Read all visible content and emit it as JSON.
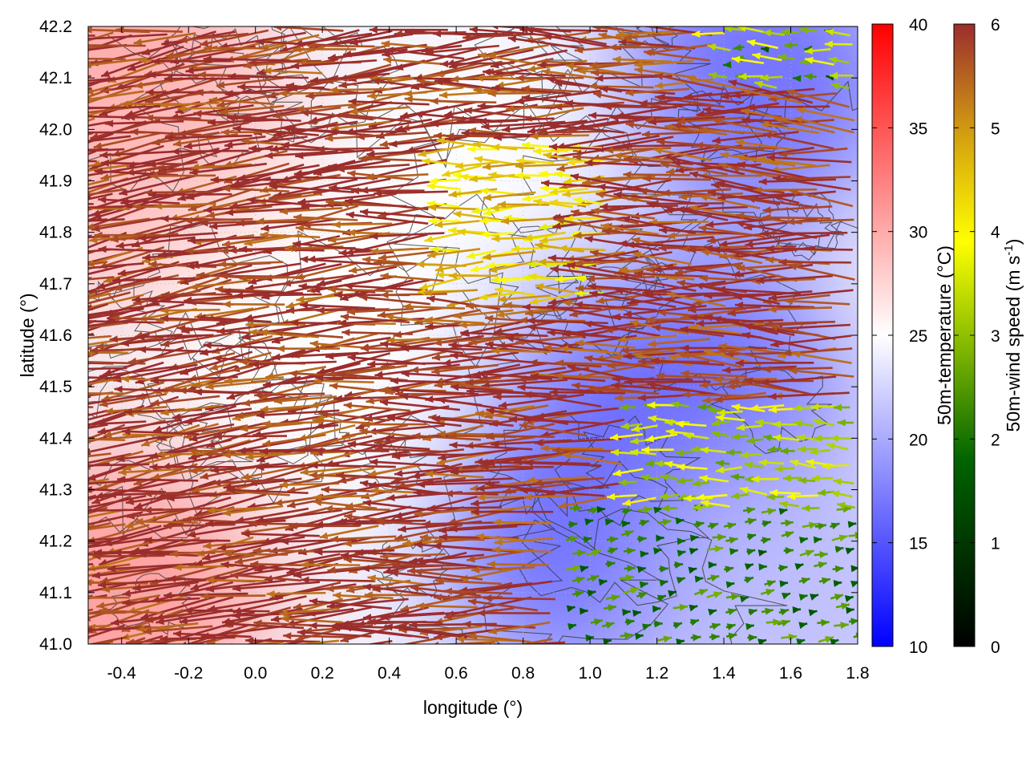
{
  "chart_data": {
    "type": "heatmap",
    "title": "",
    "xlabel": "longitude (°)",
    "ylabel": "latitude (°)",
    "xlim": [
      -0.5,
      1.8
    ],
    "ylim": [
      41.0,
      42.2
    ],
    "xticks": [
      "-0.4",
      "-0.2",
      "0.0",
      "0.2",
      "0.4",
      "0.6",
      "0.8",
      "1.0",
      "1.2",
      "1.4",
      "1.6",
      "1.8"
    ],
    "xtick_values": [
      -0.4,
      -0.2,
      0.0,
      0.2,
      0.4,
      0.6,
      0.8,
      1.0,
      1.2,
      1.4,
      1.6,
      1.8
    ],
    "yticks": [
      "42.2",
      "42.1",
      "42.0",
      "41.9",
      "41.8",
      "41.7",
      "41.6",
      "41.5",
      "41.4",
      "41.3",
      "41.2",
      "41.1",
      "41.0"
    ],
    "ytick_values": [
      42.2,
      42.1,
      42.0,
      41.9,
      41.8,
      41.7,
      41.6,
      41.5,
      41.4,
      41.3,
      41.2,
      41.1,
      41.0
    ],
    "temperature_colorbar": {
      "label": "50m-temperature (°C)",
      "range": [
        10,
        40
      ],
      "ticks": [
        "40",
        "35",
        "30",
        "25",
        "20",
        "15",
        "10"
      ],
      "tick_values": [
        40,
        35,
        30,
        25,
        20,
        15,
        10
      ],
      "colors": [
        "#0000ff",
        "#ffffff",
        "#ff0000"
      ]
    },
    "wind_colorbar": {
      "label_main": "50m-wind speed (m s",
      "label_sup": "-1",
      "label_end": ")",
      "range": [
        0,
        6
      ],
      "ticks": [
        "6",
        "5",
        "4",
        "3",
        "2",
        "1",
        "0"
      ],
      "tick_values": [
        6,
        5,
        4,
        3,
        2,
        1,
        0
      ],
      "colors": [
        "#000000",
        "#006400",
        "#90c000",
        "#ffff00",
        "#d4a010",
        "#a0522d",
        "#9b2d2d"
      ]
    },
    "temperature_field_samples": [
      {
        "lon": -0.45,
        "lat": 42.15,
        "temp": 31
      },
      {
        "lon": -0.3,
        "lat": 41.9,
        "temp": 29
      },
      {
        "lon": -0.4,
        "lat": 41.1,
        "temp": 31
      },
      {
        "lon": 0.2,
        "lat": 41.6,
        "temp": 25
      },
      {
        "lon": 0.7,
        "lat": 41.85,
        "temp": 25
      },
      {
        "lon": 1.1,
        "lat": 41.5,
        "temp": 19
      },
      {
        "lon": 1.5,
        "lat": 42.1,
        "temp": 16
      },
      {
        "lon": 1.35,
        "lat": 41.45,
        "temp": 16
      },
      {
        "lon": 1.0,
        "lat": 41.2,
        "temp": 16
      },
      {
        "lon": 1.6,
        "lat": 41.1,
        "temp": 21
      }
    ]
  }
}
